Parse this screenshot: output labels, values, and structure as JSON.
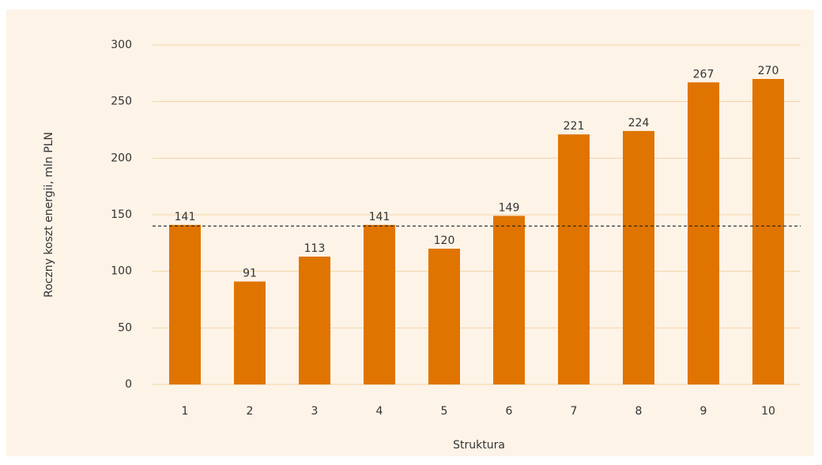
{
  "chart_data": {
    "type": "bar",
    "categories": [
      "1",
      "2",
      "3",
      "4",
      "5",
      "6",
      "7",
      "8",
      "9",
      "10"
    ],
    "values": [
      141,
      91,
      113,
      141,
      120,
      149,
      221,
      224,
      267,
      270
    ],
    "color": "#e07400",
    "x_label": "Struktura",
    "y_label": "Roczny koszt energii, mln PLN",
    "ylim": [
      0,
      300
    ],
    "yticks": [
      0,
      50,
      100,
      150,
      200,
      250,
      300
    ],
    "grid": true,
    "reference_line": 140
  }
}
